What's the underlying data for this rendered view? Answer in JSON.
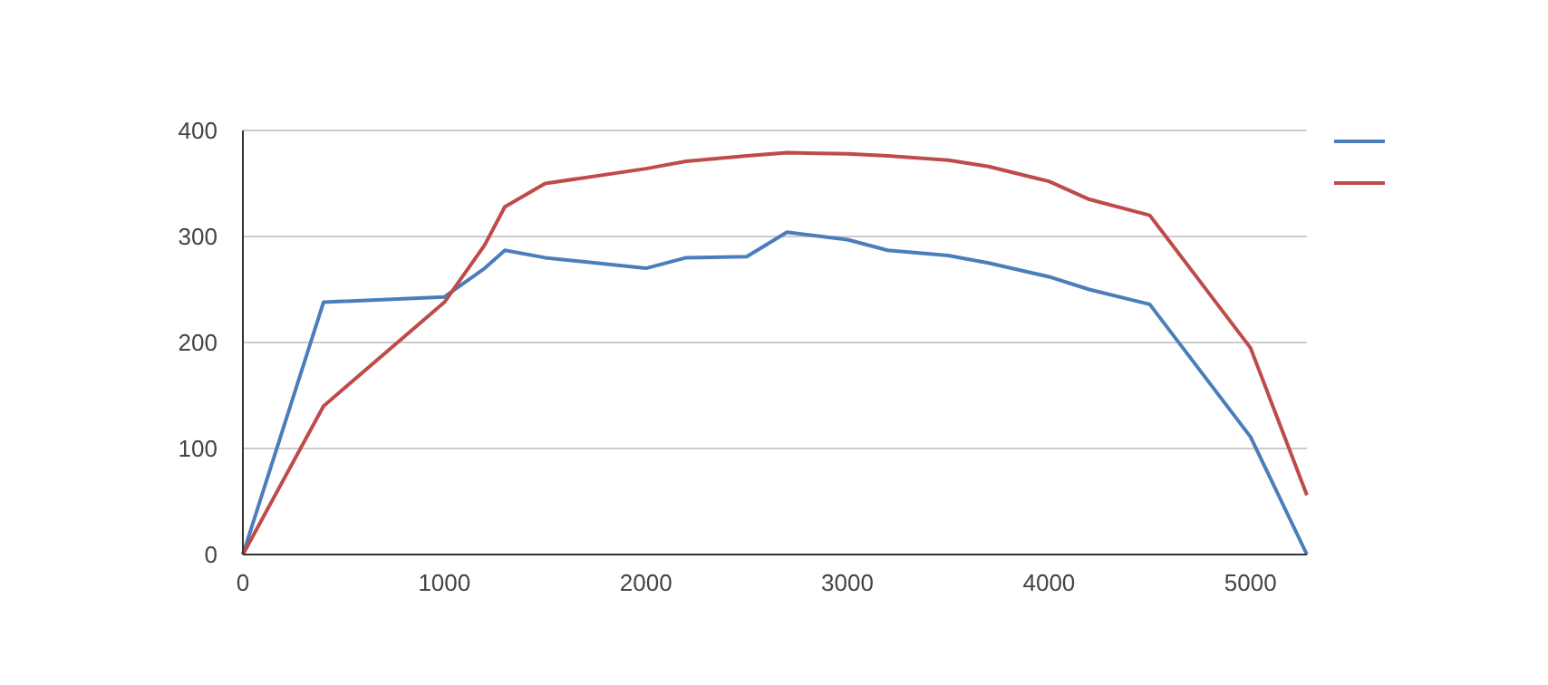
{
  "chart_data": {
    "type": "line",
    "x": [
      0,
      400,
      1000,
      1200,
      1300,
      1500,
      2000,
      2200,
      2500,
      2700,
      3000,
      3200,
      3500,
      3700,
      4000,
      4200,
      4500,
      5000,
      5280
    ],
    "series": [
      {
        "color": "#4a7ebb",
        "values": [
          0,
          238,
          243,
          270,
          287,
          280,
          270,
          280,
          281,
          304,
          297,
          287,
          282,
          275,
          262,
          250,
          236,
          111,
          0
        ]
      },
      {
        "color": "#be4b48",
        "values": [
          0,
          140,
          238,
          292,
          328,
          350,
          364,
          371,
          376,
          379,
          378,
          376,
          372,
          366,
          352,
          335,
          320,
          195,
          56
        ]
      }
    ],
    "xlim": [
      0,
      5280
    ],
    "xticks": [
      0,
      1000,
      2000,
      3000,
      4000,
      5000
    ],
    "ylim": [
      0,
      400
    ],
    "yticks": [
      0,
      100,
      200,
      300,
      400
    ],
    "grid": "y"
  }
}
